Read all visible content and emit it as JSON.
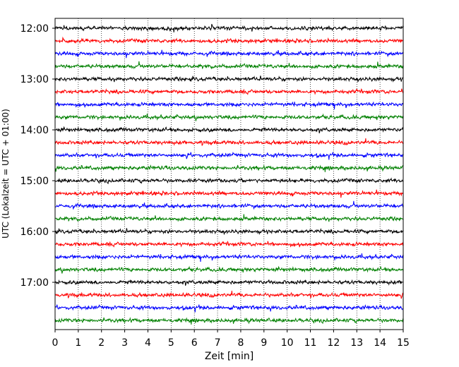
{
  "chart_data": {
    "type": "line",
    "title": "",
    "xlabel": "Zeit  [min]",
    "ylabel": "UTC (Lokalzeit = UTC + 01:00)",
    "xlim": [
      0,
      15
    ],
    "x_ticks": [
      "0",
      "1",
      "2",
      "3",
      "4",
      "5",
      "6",
      "7",
      "8",
      "9",
      "10",
      "11",
      "12",
      "13",
      "14",
      "15"
    ],
    "y_ticks": [
      "12:00",
      "13:00",
      "14:00",
      "15:00",
      "16:00",
      "17:00"
    ],
    "grid": "vertical-dotted",
    "trace_interval_minutes": 15,
    "traces_start": "12:00",
    "trace_count": 24,
    "trace_colors": [
      "#000000",
      "#ff0000",
      "#0000ff",
      "#008000"
    ]
  }
}
